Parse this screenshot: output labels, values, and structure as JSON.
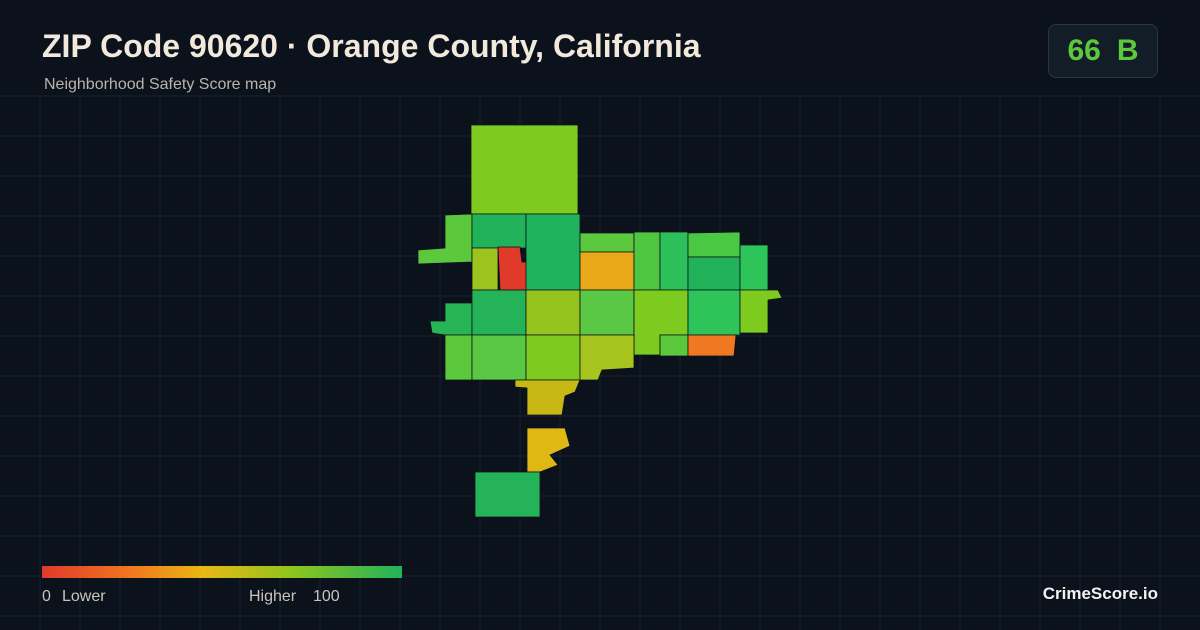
{
  "header": {
    "title": "ZIP Code 90620 · Orange County, California",
    "subtitle": "Neighborhood Safety Score map"
  },
  "score": {
    "value": "66",
    "grade": "B"
  },
  "legend": {
    "min": "0",
    "min_label": "Lower",
    "max_label": "Higher",
    "max": "100"
  },
  "brand": "CrimeScore.io"
}
